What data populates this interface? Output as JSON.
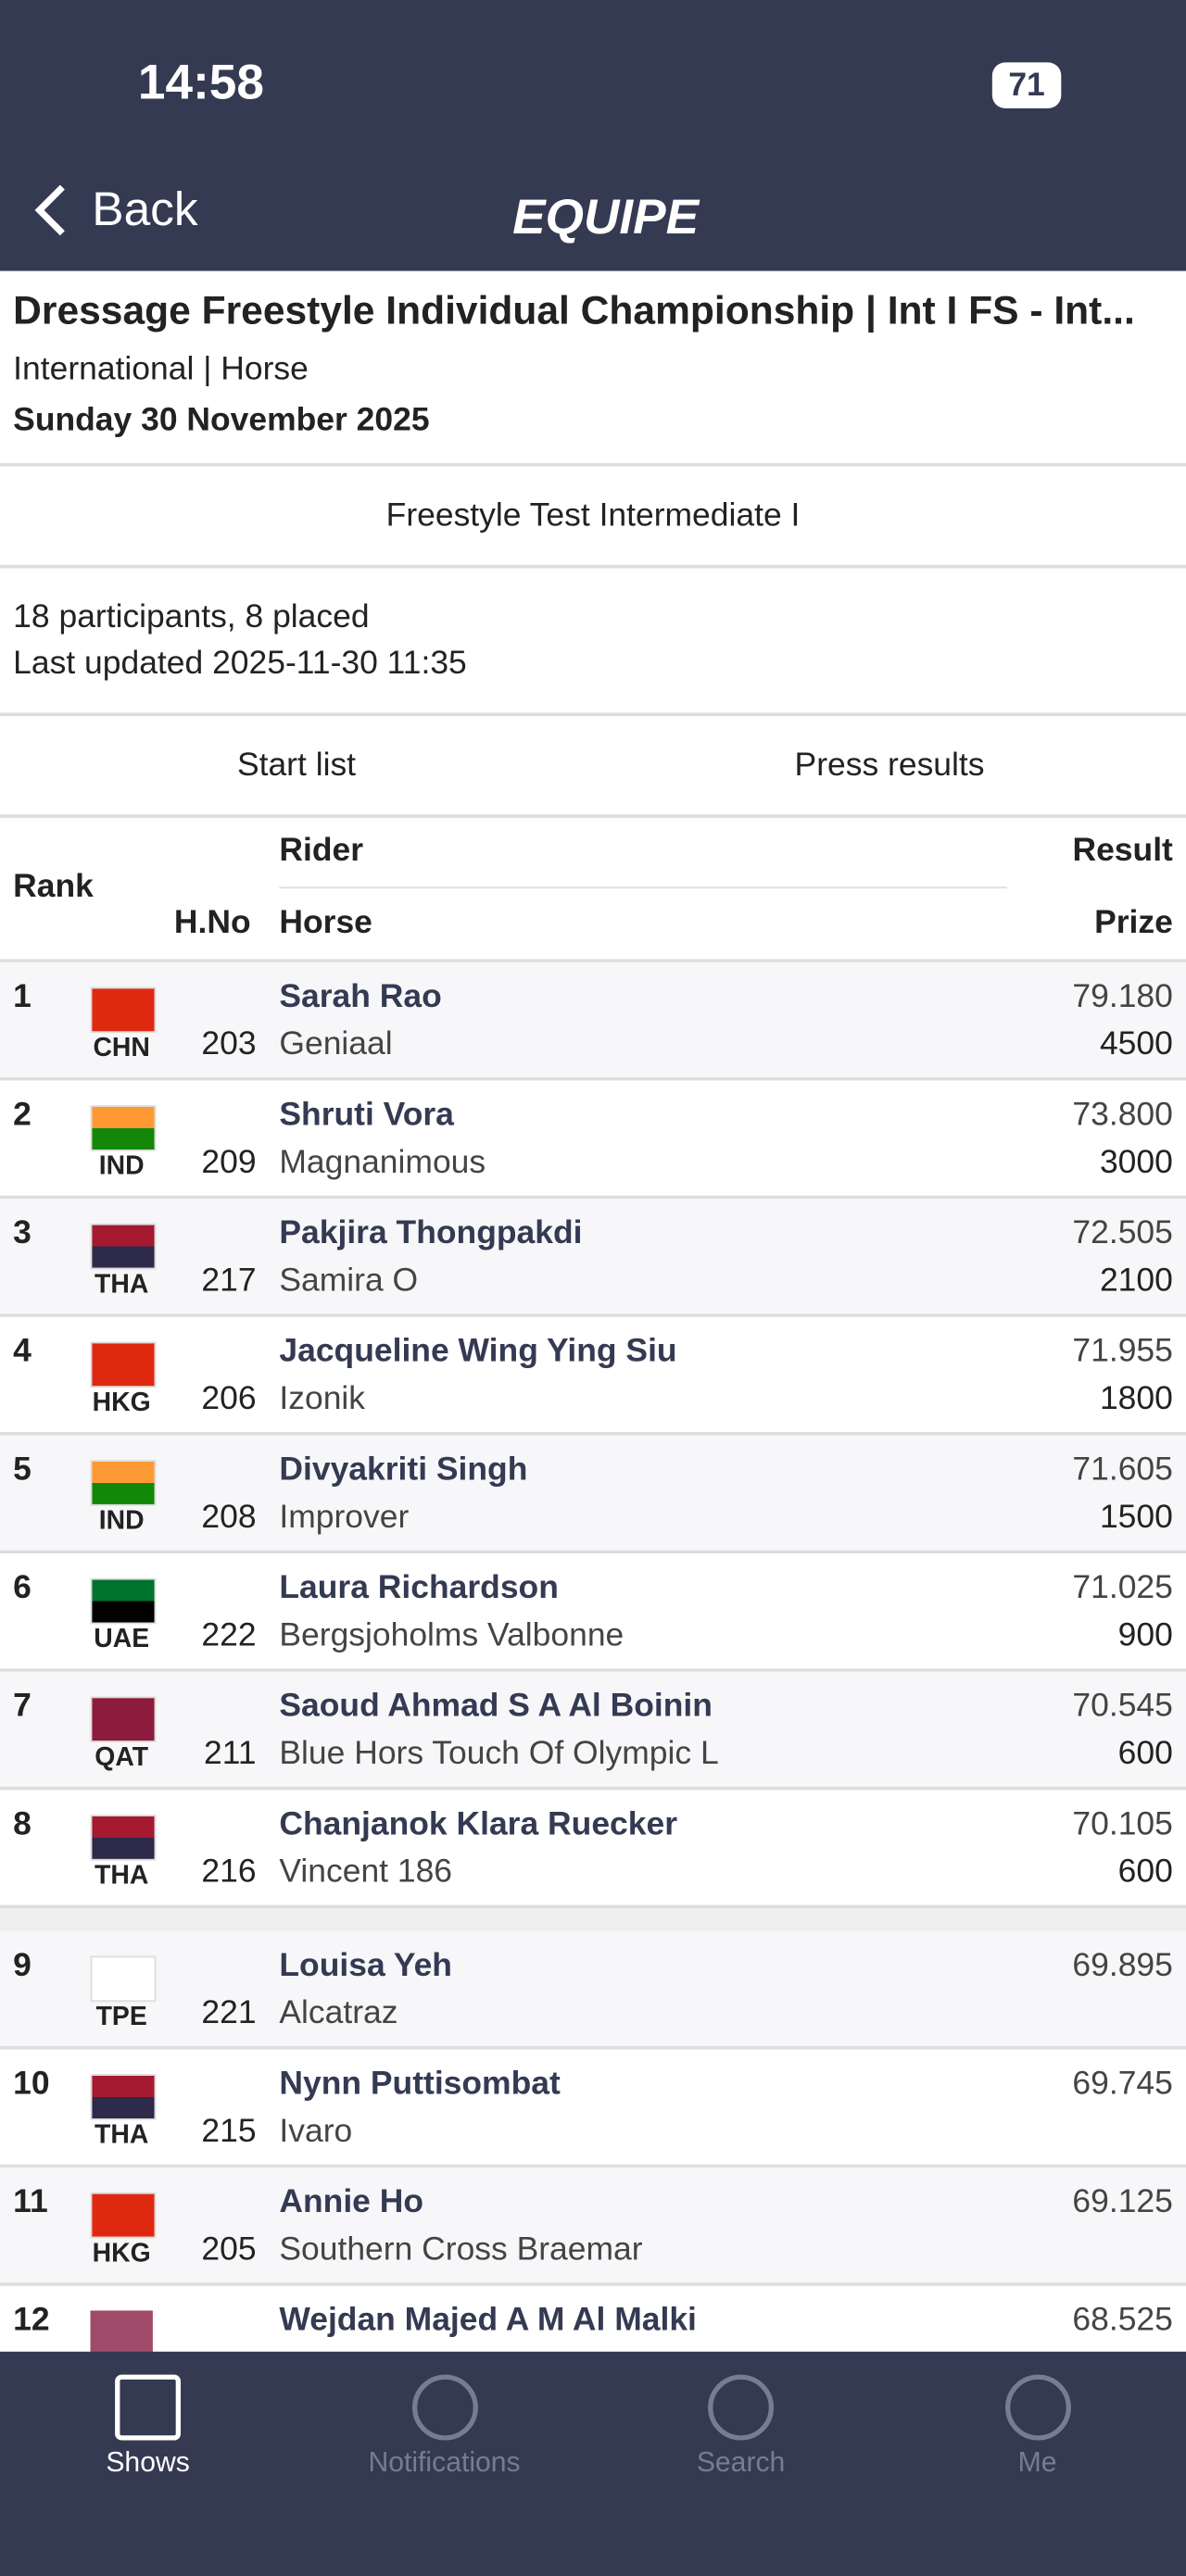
{
  "status_bar": {
    "time": "14:58",
    "battery": "71"
  },
  "nav": {
    "back": "Back",
    "logo": "EQUIPE"
  },
  "header": {
    "title": "Dressage Freestyle Individual Championship | Int I FS - Int...",
    "subtitle": "International | Horse",
    "date": "Sunday 30 November 2025"
  },
  "test_name": "Freestyle Test Intermediate I",
  "info": {
    "participants": "18 participants, 8 placed",
    "last_updated": "Last updated 2025-11-30 11:35"
  },
  "tabs": [
    "Start list",
    "Press results"
  ],
  "table": {
    "columns": {
      "rank": "Rank",
      "hno": "H.No",
      "rider": "Rider",
      "horse": "Horse",
      "result": "Result",
      "prize": "Prize"
    },
    "rows": [
      {
        "rank": "1",
        "nation": "CHN",
        "hno": "203",
        "rider": "Sarah Rao",
        "horse": "Geniaal",
        "result": "79.180",
        "prize": "4500"
      },
      {
        "rank": "2",
        "nation": "IND",
        "hno": "209",
        "rider": "Shruti Vora",
        "horse": "Magnanimous",
        "result": "73.800",
        "prize": "3000"
      },
      {
        "rank": "3",
        "nation": "THA",
        "hno": "217",
        "rider": "Pakjira Thongpakdi",
        "horse": "Samira O",
        "result": "72.505",
        "prize": "2100"
      },
      {
        "rank": "4",
        "nation": "HKG",
        "hno": "206",
        "rider": "Jacqueline Wing Ying Siu",
        "horse": "Izonik",
        "result": "71.955",
        "prize": "1800"
      },
      {
        "rank": "5",
        "nation": "IND",
        "hno": "208",
        "rider": "Divyakriti Singh",
        "horse": "Improver",
        "result": "71.605",
        "prize": "1500"
      },
      {
        "rank": "6",
        "nation": "UAE",
        "hno": "222",
        "rider": "Laura Richardson",
        "horse": "Bergsjoholms Valbonne",
        "result": "71.025",
        "prize": "900"
      },
      {
        "rank": "7",
        "nation": "QAT",
        "hno": "211",
        "rider": "Saoud Ahmad S A Al Boinin",
        "horse": "Blue Hors Touch Of Olympic L",
        "result": "70.545",
        "prize": "600"
      },
      {
        "rank": "8",
        "nation": "THA",
        "hno": "216",
        "rider": "Chanjanok Klara Ruecker",
        "horse": "Vincent 186",
        "result": "70.105",
        "prize": "600"
      },
      {
        "rank": "9",
        "nation": "TPE",
        "hno": "221",
        "rider": "Louisa Yeh",
        "horse": "Alcatraz",
        "result": "69.895"
      },
      {
        "rank": "10",
        "nation": "THA",
        "hno": "215",
        "rider": "Nynn Puttisombat",
        "horse": "Ivaro",
        "result": "69.745"
      },
      {
        "rank": "11",
        "nation": "HKG",
        "hno": "205",
        "rider": "Annie Ho",
        "horse": "Southern Cross Braemar",
        "result": "69.125"
      },
      {
        "rank": "12",
        "rider": "Wejdan Majed A M Al Malki",
        "result": "68.525"
      }
    ]
  },
  "tab_bar": [
    "Shows",
    "Notifications",
    "Search",
    "Me"
  ]
}
